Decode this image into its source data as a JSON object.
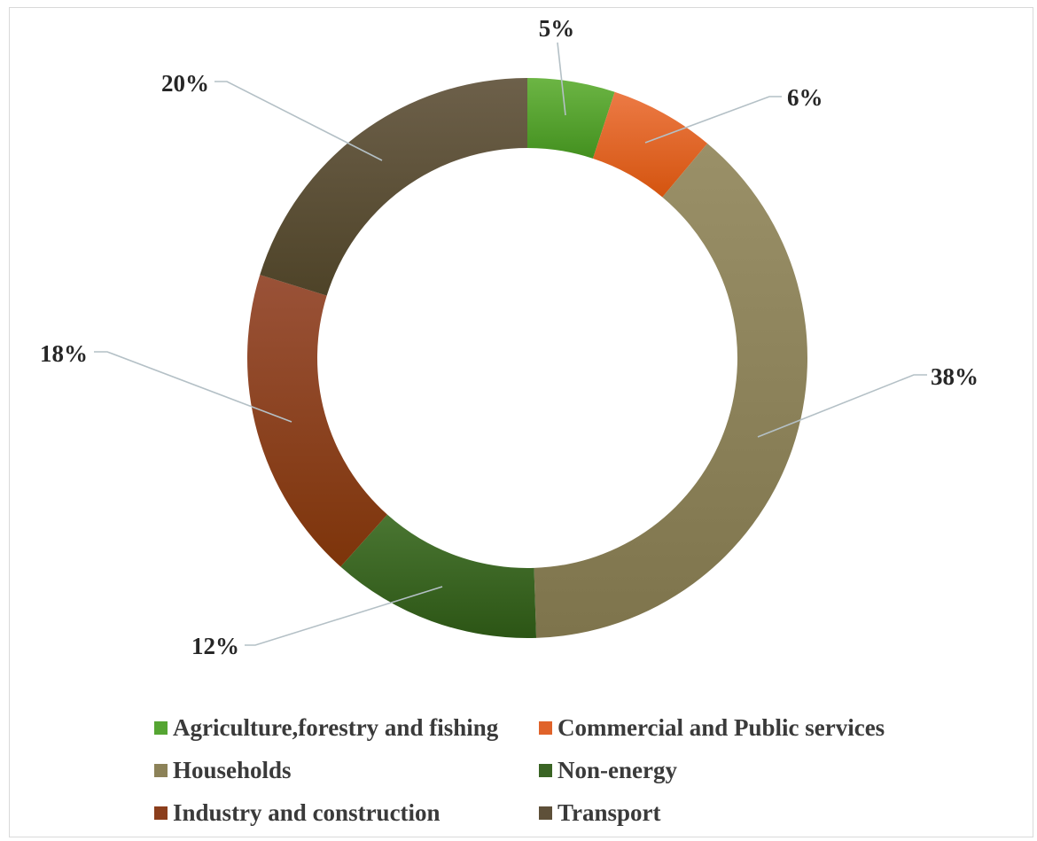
{
  "chart_data": {
    "type": "pie",
    "donut": true,
    "title": "",
    "legend_position": "bottom",
    "slices": [
      {
        "name": "Agriculture,forestry and fishing",
        "value": 5,
        "label": "5%",
        "color": "#55A532"
      },
      {
        "name": "Commercial and Public services",
        "value": 6,
        "label": "6%",
        "color": "#E0632A"
      },
      {
        "name": "Households",
        "value": 38,
        "label": "38%",
        "color": "#8C8258"
      },
      {
        "name": "Non-energy",
        "value": 12,
        "label": "12%",
        "color": "#3A6424"
      },
      {
        "name": "Industry and construction",
        "value": 18,
        "label": "18%",
        "color": "#8B3E1C"
      },
      {
        "name": "Transport",
        "value": 20,
        "label": "20%",
        "color": "#5E5039"
      }
    ]
  }
}
